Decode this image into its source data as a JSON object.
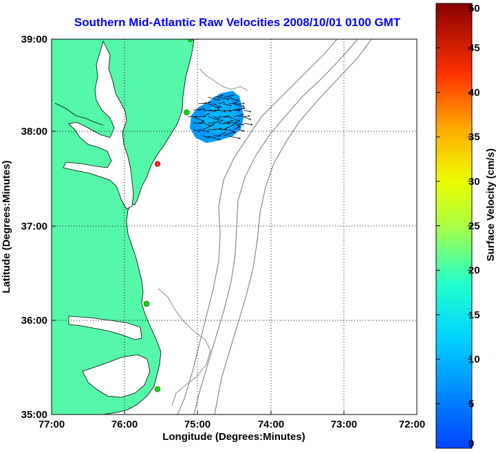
{
  "title": "Southern Mid-Atlantic Raw Velocities 2008/10/01 0100 GMT",
  "xlabel": "Longitude (Degrees:Minutes)",
  "ylabel": "Latitude (Degrees:Minutes)",
  "x_ticks": [
    "77:00",
    "76:00",
    "75:00",
    "74:00",
    "73:00",
    "72:00"
  ],
  "y_ticks": [
    "39:00",
    "38:00",
    "37:00",
    "36:00",
    "35:00"
  ],
  "colorbar": {
    "label": "Surface Velocity (cm/s)",
    "range": [
      0,
      50
    ],
    "ticks": [
      "0",
      "5",
      "10",
      "15",
      "20",
      "25",
      "30",
      "35",
      "40",
      "45",
      "50"
    ]
  },
  "map": {
    "lon_range": [
      -77,
      -72
    ],
    "lat_range": [
      35,
      39
    ],
    "land_color": "#55f7a8",
    "grid": true
  },
  "stations": [
    {
      "lon": -75.1,
      "lat": 39.0,
      "color": "#00dd00"
    },
    {
      "lon": -75.15,
      "lat": 38.22,
      "color": "#00dd00"
    },
    {
      "lon": -75.55,
      "lat": 37.67,
      "color": "#ff2222"
    },
    {
      "lon": -75.7,
      "lat": 36.18,
      "color": "#00dd00"
    },
    {
      "lon": -75.55,
      "lat": 35.27,
      "color": "#00dd00"
    }
  ],
  "chart_data": {
    "type": "heatmap",
    "title": "Southern Mid-Atlantic Raw Velocities 2008/10/01 0100 GMT",
    "xlabel": "Longitude (Degrees:Minutes)",
    "ylabel": "Latitude (Degrees:Minutes)",
    "xlim": [
      -77,
      -72
    ],
    "ylim": [
      35,
      39
    ],
    "colorbar_range": [
      0,
      50
    ],
    "colorbar_label": "Surface Velocity (cm/s)",
    "velocity_field": {
      "lon_range": [
        -75.2,
        -74.3
      ],
      "lat_range": [
        37.9,
        38.45
      ],
      "speed_range": [
        3,
        9
      ]
    }
  }
}
